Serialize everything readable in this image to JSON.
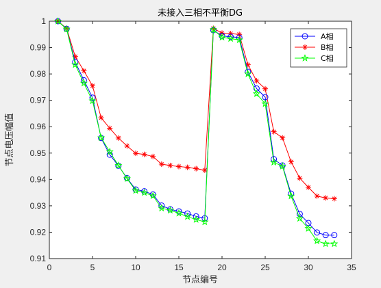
{
  "chart_data": {
    "type": "line",
    "title": "未接入三相不平衡DG",
    "xlabel": "节点编号",
    "ylabel": "节点电压幅值",
    "xlim": [
      0,
      35
    ],
    "ylim": [
      0.91,
      1.0
    ],
    "xticks": [
      "0",
      "5",
      "10",
      "15",
      "20",
      "25",
      "30",
      "35"
    ],
    "yticks": [
      "0.91",
      "0.92",
      "0.93",
      "0.94",
      "0.95",
      "0.96",
      "0.97",
      "0.98",
      "0.99",
      "1"
    ],
    "grid": false,
    "legend_position": "top-right",
    "x": [
      1,
      2,
      3,
      4,
      5,
      6,
      7,
      8,
      9,
      10,
      11,
      12,
      13,
      14,
      15,
      16,
      17,
      18,
      19,
      20,
      21,
      22,
      23,
      24,
      25,
      26,
      27,
      28,
      29,
      30,
      31,
      32,
      33
    ],
    "series": [
      {
        "name": "A相",
        "color": "#0000ff",
        "marker": "circle",
        "values": [
          1.0,
          0.9971,
          0.9845,
          0.9776,
          0.971,
          0.9557,
          0.9494,
          0.9452,
          0.9405,
          0.9362,
          0.9355,
          0.9343,
          0.9301,
          0.9287,
          0.9279,
          0.9271,
          0.926,
          0.9253,
          0.9966,
          0.9944,
          0.9941,
          0.9938,
          0.9808,
          0.9745,
          0.9712,
          0.9477,
          0.9453,
          0.9346,
          0.9269,
          0.9235,
          0.9199,
          0.9189,
          0.9189
        ]
      },
      {
        "name": "B相",
        "color": "#ff0000",
        "marker": "asterisk",
        "values": [
          1.0,
          0.9973,
          0.9866,
          0.9812,
          0.9755,
          0.9634,
          0.9594,
          0.9557,
          0.9527,
          0.9499,
          0.9495,
          0.9487,
          0.9458,
          0.9453,
          0.9449,
          0.9446,
          0.9441,
          0.9435,
          0.9973,
          0.9955,
          0.9953,
          0.995,
          0.9835,
          0.9774,
          0.9744,
          0.9581,
          0.9558,
          0.9467,
          0.9405,
          0.937,
          0.9337,
          0.933,
          0.9327
        ]
      },
      {
        "name": "C相",
        "color": "#00ff00",
        "marker": "pentagram",
        "values": [
          1.0,
          0.997,
          0.9835,
          0.9765,
          0.9698,
          0.9558,
          0.9505,
          0.9453,
          0.9403,
          0.9358,
          0.935,
          0.9338,
          0.9291,
          0.9283,
          0.9272,
          0.9259,
          0.9248,
          0.9239,
          0.9968,
          0.9939,
          0.9934,
          0.9929,
          0.98,
          0.9725,
          0.9687,
          0.9465,
          0.945,
          0.9337,
          0.9252,
          0.9214,
          0.9167,
          0.9156,
          0.9156
        ]
      }
    ]
  }
}
